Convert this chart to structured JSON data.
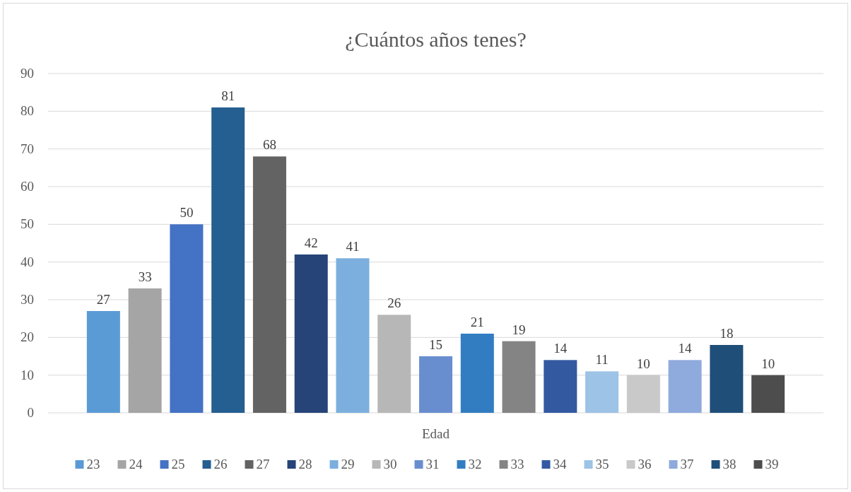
{
  "chart_data": {
    "type": "bar",
    "title": "¿Cuántos años tenes?",
    "categories": [
      "Edad"
    ],
    "ylim": [
      0,
      90
    ],
    "yticks": [
      0,
      10,
      20,
      30,
      40,
      50,
      60,
      70,
      80,
      90
    ],
    "grid": "y",
    "data_labels": true,
    "legend": "bottom",
    "series": [
      {
        "name": "23",
        "color": "#5b9bd5",
        "values": [
          27
        ]
      },
      {
        "name": "24",
        "color": "#a5a5a5",
        "values": [
          33
        ]
      },
      {
        "name": "25",
        "color": "#4472c4",
        "values": [
          50
        ]
      },
      {
        "name": "26",
        "color": "#255e91",
        "values": [
          81
        ]
      },
      {
        "name": "27",
        "color": "#636363",
        "values": [
          68
        ]
      },
      {
        "name": "28",
        "color": "#264478",
        "values": [
          42
        ]
      },
      {
        "name": "29",
        "color": "#7cafdd",
        "values": [
          41
        ]
      },
      {
        "name": "30",
        "color": "#b7b7b7",
        "values": [
          26
        ]
      },
      {
        "name": "31",
        "color": "#698ed0",
        "values": [
          15
        ]
      },
      {
        "name": "32",
        "color": "#327dc2",
        "values": [
          21
        ]
      },
      {
        "name": "33",
        "color": "#848484",
        "values": [
          19
        ]
      },
      {
        "name": "34",
        "color": "#335aa1",
        "values": [
          14
        ]
      },
      {
        "name": "35",
        "color": "#9dc3e6",
        "values": [
          11
        ]
      },
      {
        "name": "36",
        "color": "#c9c9c9",
        "values": [
          10
        ]
      },
      {
        "name": "37",
        "color": "#8faadc",
        "values": [
          14
        ]
      },
      {
        "name": "38",
        "color": "#1f4e79",
        "values": [
          18
        ]
      },
      {
        "name": "39",
        "color": "#4d4d4d",
        "values": [
          10
        ]
      }
    ]
  }
}
